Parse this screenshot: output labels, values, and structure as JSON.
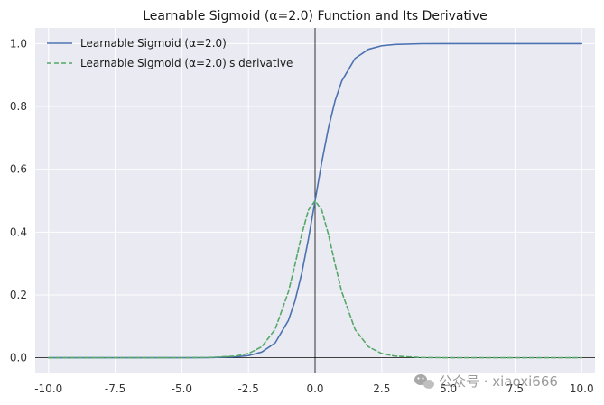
{
  "chart_data": {
    "type": "line",
    "title": "Learnable Sigmoid (α=2.0) Function and Its Derivative",
    "xlabel": "",
    "ylabel": "",
    "xlim": [
      -10.5,
      10.5
    ],
    "ylim": [
      -0.05,
      1.05
    ],
    "x_ticks": [
      -10,
      -7.5,
      -5,
      -2.5,
      0,
      2.5,
      5,
      7.5,
      10
    ],
    "x_tick_labels": [
      "-10.0",
      "-7.5",
      "-5.0",
      "-2.5",
      "0.0",
      "2.5",
      "5.0",
      "7.5",
      "10.0"
    ],
    "y_ticks": [
      0,
      0.2,
      0.4,
      0.6,
      0.8,
      1.0
    ],
    "y_tick_labels": [
      "0.0",
      "0.2",
      "0.4",
      "0.6",
      "0.8",
      "1.0"
    ],
    "grid": true,
    "legend_position": "top-left",
    "background_color": "#eaeaf2",
    "series": [
      {
        "name": "Learnable Sigmoid (α=2.0)",
        "color": "#4c72b0",
        "style": "solid",
        "x": [
          -10,
          -8,
          -6,
          -5,
          -4,
          -3,
          -2.5,
          -2,
          -1.5,
          -1,
          -0.75,
          -0.5,
          -0.25,
          0,
          0.25,
          0.5,
          0.75,
          1,
          1.5,
          2,
          2.5,
          3,
          4,
          5,
          6,
          8,
          10
        ],
        "y": [
          0.0,
          0.0,
          0.0,
          0.0,
          0.0003,
          0.0025,
          0.0067,
          0.018,
          0.047,
          0.119,
          0.182,
          0.269,
          0.378,
          0.5,
          0.622,
          0.731,
          0.818,
          0.881,
          0.953,
          0.982,
          0.9933,
          0.9975,
          0.9997,
          1.0,
          1.0,
          1.0,
          1.0
        ]
      },
      {
        "name": "Learnable Sigmoid (α=2.0)'s derivative",
        "color": "#55a868",
        "style": "dashed",
        "x": [
          -10,
          -8,
          -6,
          -5,
          -4,
          -3,
          -2.5,
          -2,
          -1.5,
          -1,
          -0.75,
          -0.5,
          -0.25,
          0,
          0.25,
          0.5,
          0.75,
          1,
          1.5,
          2,
          2.5,
          3,
          4,
          5,
          6,
          8,
          10
        ],
        "y": [
          0.0,
          0.0,
          0.0,
          0.0001,
          0.0007,
          0.005,
          0.0133,
          0.035,
          0.09,
          0.21,
          0.298,
          0.393,
          0.47,
          0.5,
          0.47,
          0.393,
          0.298,
          0.21,
          0.09,
          0.035,
          0.0133,
          0.005,
          0.0007,
          0.0001,
          0.0,
          0.0,
          0.0
        ]
      }
    ]
  },
  "watermark": {
    "icon": "wechat-icon",
    "text": "公众号 · xiaoxi666"
  }
}
